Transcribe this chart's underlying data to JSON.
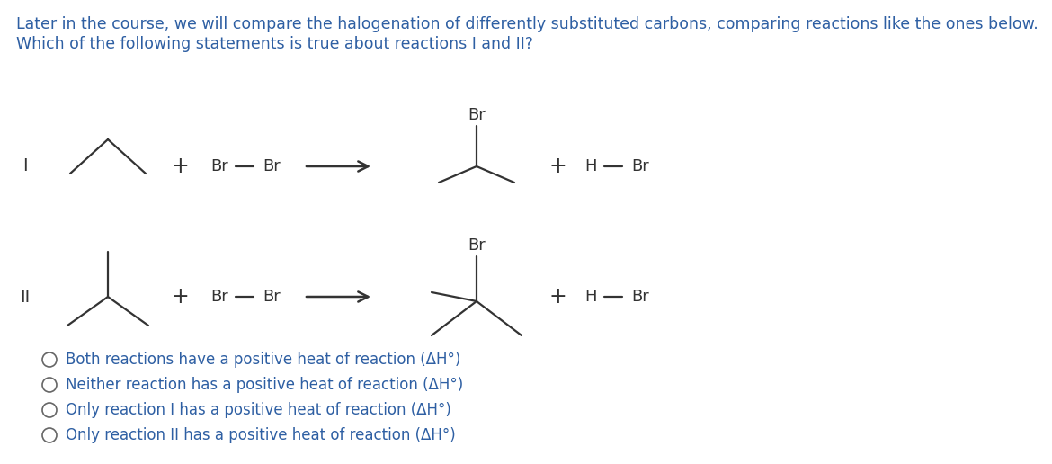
{
  "background_color": "#ffffff",
  "title_text": "Later in the course, we will compare the halogenation of differently substituted carbons, comparing reactions like the ones below.",
  "subtitle_text": "Which of the following statements is true about reactions I and II?",
  "title_color": "#2e5fa3",
  "title_fontsize": 12.5,
  "choices": [
    "Both reactions have a positive heat of reaction (ΔH°)",
    "Neither reaction has a positive heat of reaction (ΔH°)",
    "Only reaction I has a positive heat of reaction (ΔH°)",
    "Only reaction II has a positive heat of reaction (ΔH°)"
  ],
  "choice_color": "#2e5fa3",
  "choice_fontsize": 12.0,
  "label_color": "#333333",
  "bond_color": "#333333"
}
